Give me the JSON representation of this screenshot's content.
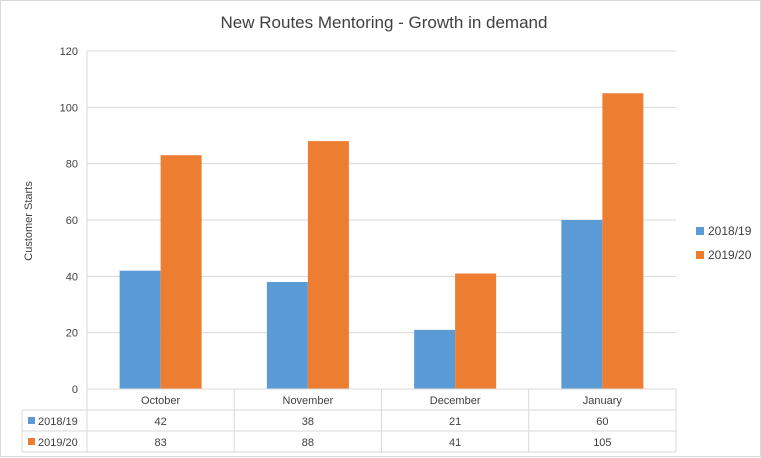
{
  "chart_data": {
    "type": "bar",
    "title": "New Routes Mentoring - Growth in demand",
    "ylabel": "Customer Starts",
    "xlabel": "",
    "categories": [
      "October",
      "November",
      "December",
      "January"
    ],
    "series": [
      {
        "name": "2018/19",
        "values": [
          42,
          38,
          21,
          60
        ],
        "color": "#5b9bd5"
      },
      {
        "name": "2019/20",
        "values": [
          83,
          88,
          41,
          105
        ],
        "color": "#ed7d31"
      }
    ],
    "ylim": [
      0,
      120
    ],
    "yticks": [
      0,
      20,
      40,
      60,
      80,
      100,
      120
    ],
    "grid": true,
    "legend": "right",
    "data_table": true,
    "gridline_color": "#d9d9d9"
  }
}
